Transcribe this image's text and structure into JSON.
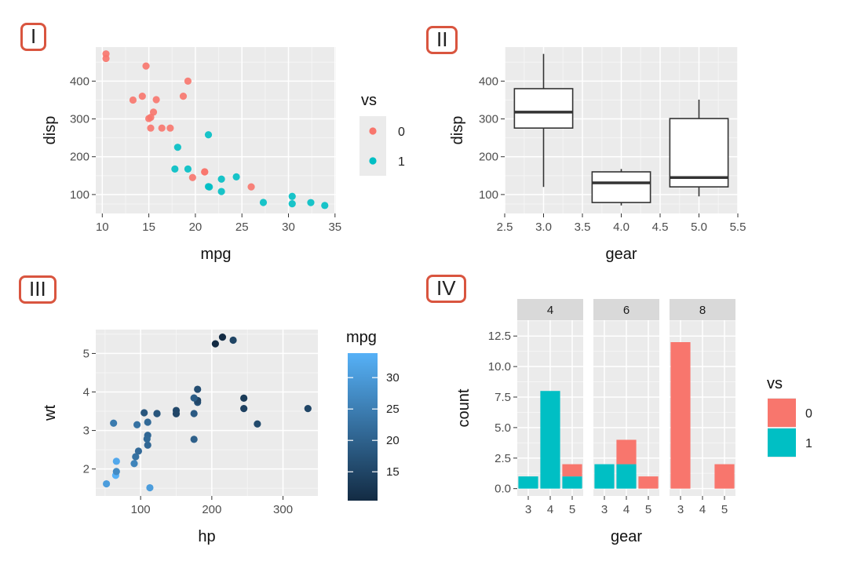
{
  "panel_labels": [
    "I",
    "II",
    "III",
    "IV"
  ],
  "chart_data": [
    {
      "panel": "I",
      "type": "scatter",
      "xlabel": "mpg",
      "ylabel": "disp",
      "xlim": [
        9.3,
        35.1
      ],
      "ylim": [
        50,
        490
      ],
      "xticks": [
        10,
        15,
        20,
        25,
        30,
        35
      ],
      "yticks": [
        100,
        200,
        300,
        400
      ],
      "legend": {
        "title": "vs",
        "position": "right",
        "entries": [
          {
            "label": "0",
            "color": "#F8766D"
          },
          {
            "label": "1",
            "color": "#00BFC4"
          }
        ]
      },
      "points": [
        [
          21.0,
          160,
          0
        ],
        [
          21.0,
          160,
          0
        ],
        [
          22.8,
          108,
          1
        ],
        [
          21.4,
          258,
          1
        ],
        [
          18.7,
          360,
          0
        ],
        [
          18.1,
          225,
          1
        ],
        [
          14.3,
          360,
          0
        ],
        [
          24.4,
          146.7,
          1
        ],
        [
          22.8,
          140.8,
          1
        ],
        [
          19.2,
          167.6,
          1
        ],
        [
          17.8,
          167.6,
          1
        ],
        [
          16.4,
          275.8,
          0
        ],
        [
          17.3,
          275.8,
          0
        ],
        [
          15.2,
          275.8,
          0
        ],
        [
          10.4,
          472,
          0
        ],
        [
          10.4,
          460,
          0
        ],
        [
          14.7,
          440,
          0
        ],
        [
          32.4,
          78.7,
          1
        ],
        [
          30.4,
          75.7,
          1
        ],
        [
          33.9,
          71.1,
          1
        ],
        [
          21.5,
          120.1,
          1
        ],
        [
          15.5,
          318,
          0
        ],
        [
          15.2,
          304,
          0
        ],
        [
          13.3,
          350,
          0
        ],
        [
          19.2,
          400,
          0
        ],
        [
          27.3,
          79,
          1
        ],
        [
          26.0,
          120.3,
          0
        ],
        [
          30.4,
          95.1,
          1
        ],
        [
          15.8,
          351,
          0
        ],
        [
          19.7,
          145,
          0
        ],
        [
          15.0,
          301,
          0
        ],
        [
          21.4,
          121,
          1
        ]
      ]
    },
    {
      "panel": "II",
      "type": "box",
      "xlabel": "gear",
      "ylabel": "disp",
      "xlim": [
        2.5,
        5.5
      ],
      "ylim": [
        50,
        490
      ],
      "xticks": [
        "2.5",
        "3.0",
        "3.5",
        "4.0",
        "4.5",
        "5.0",
        "5.5"
      ],
      "yticks": [
        100,
        200,
        300,
        400
      ],
      "boxes": [
        {
          "x": 3,
          "min": 120.1,
          "q1": 275.8,
          "median": 318,
          "q3": 380,
          "max": 472
        },
        {
          "x": 4,
          "min": 71.1,
          "q1": 78.9,
          "median": 130.9,
          "q3": 160,
          "max": 167.6
        },
        {
          "x": 5,
          "min": 95.1,
          "q1": 120.3,
          "median": 145,
          "q3": 301,
          "max": 351
        }
      ]
    },
    {
      "panel": "III",
      "type": "scatter",
      "xlabel": "hp",
      "ylabel": "wt",
      "xlim": [
        37,
        349
      ],
      "ylim": [
        1.3,
        5.62
      ],
      "xticks": [
        100,
        200,
        300
      ],
      "yticks": [
        2,
        3,
        4,
        5
      ],
      "colorbar": {
        "title": "mpg",
        "range": [
          10.4,
          33.9
        ],
        "ticks": [
          15,
          20,
          25,
          30
        ],
        "low_color": "#132B43",
        "high_color": "#56B1F7"
      },
      "points": [
        [
          110,
          2.62,
          21.0
        ],
        [
          110,
          2.875,
          21.0
        ],
        [
          93,
          2.32,
          22.8
        ],
        [
          110,
          3.215,
          21.4
        ],
        [
          175,
          3.44,
          18.7
        ],
        [
          105,
          3.46,
          18.1
        ],
        [
          245,
          3.57,
          14.3
        ],
        [
          62,
          3.19,
          24.4
        ],
        [
          95,
          3.15,
          22.8
        ],
        [
          123,
          3.44,
          19.2
        ],
        [
          123,
          3.44,
          17.8
        ],
        [
          180,
          4.07,
          16.4
        ],
        [
          180,
          3.73,
          17.3
        ],
        [
          180,
          3.78,
          15.2
        ],
        [
          205,
          5.25,
          10.4
        ],
        [
          215,
          5.424,
          10.4
        ],
        [
          230,
          5.345,
          14.7
        ],
        [
          66,
          2.2,
          32.4
        ],
        [
          52,
          1.615,
          30.4
        ],
        [
          65,
          1.835,
          33.9
        ],
        [
          97,
          2.465,
          21.5
        ],
        [
          150,
          3.52,
          15.5
        ],
        [
          150,
          3.435,
          15.2
        ],
        [
          245,
          3.84,
          13.3
        ],
        [
          175,
          3.845,
          19.2
        ],
        [
          66,
          1.935,
          27.3
        ],
        [
          91,
          2.14,
          26.0
        ],
        [
          113,
          1.513,
          30.4
        ],
        [
          264,
          3.17,
          15.8
        ],
        [
          175,
          2.77,
          19.7
        ],
        [
          335,
          3.57,
          15.0
        ],
        [
          109,
          2.78,
          21.4
        ]
      ]
    },
    {
      "panel": "IV",
      "type": "bar",
      "stacked": true,
      "xlabel": "gear",
      "ylabel": "count",
      "ylim": [
        -0.6,
        13.8
      ],
      "yticks": [
        "0.0",
        "2.5",
        "5.0",
        "7.5",
        "10.0",
        "12.5"
      ],
      "facets": [
        "4",
        "6",
        "8"
      ],
      "categories": [
        "3",
        "4",
        "5"
      ],
      "series": [
        {
          "name": "0",
          "color": "#F8766D",
          "values": [
            [
              0,
              0,
              1
            ],
            [
              0,
              2,
              1
            ],
            [
              12,
              0,
              2
            ]
          ]
        },
        {
          "name": "1",
          "color": "#00BFC4",
          "values": [
            [
              1,
              8,
              1
            ],
            [
              2,
              2,
              0
            ],
            [
              0,
              0,
              0
            ]
          ]
        }
      ],
      "legend": {
        "title": "vs",
        "position": "right",
        "entries": [
          {
            "label": "0",
            "color": "#F8766D"
          },
          {
            "label": "1",
            "color": "#00BFC4"
          }
        ]
      }
    }
  ]
}
